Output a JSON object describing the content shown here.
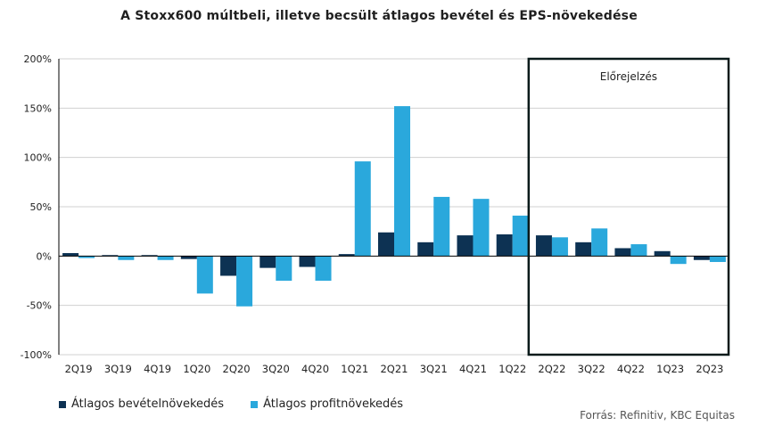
{
  "colors": {
    "revenue": "#0d3253",
    "profit": "#2aa8dc",
    "grid": "#d0d0d0",
    "axis": "#000000",
    "forecast_box": "#0a1a1a"
  },
  "chart_data": {
    "type": "bar",
    "title": "A Stoxx600  múltbeli,  illetve  becsült  átlagos bevétel  és  EPS-növekedése",
    "categories": [
      "2Q19",
      "3Q19",
      "4Q19",
      "1Q20",
      "2Q20",
      "3Q20",
      "4Q20",
      "1Q21",
      "2Q21",
      "3Q21",
      "4Q21",
      "1Q22",
      "2Q22",
      "3Q22",
      "4Q22",
      "1Q23",
      "2Q23"
    ],
    "series": [
      {
        "name": "Átlagos bevételnövekedés",
        "values": [
          3,
          1,
          1,
          -3,
          -20,
          -12,
          -11,
          2,
          24,
          14,
          21,
          22,
          21,
          14,
          8,
          5,
          -4
        ]
      },
      {
        "name": "Átlagos profitnövekedés",
        "values": [
          -2,
          -4,
          -4,
          -38,
          -51,
          -25,
          -25,
          96,
          152,
          60,
          58,
          41,
          19,
          28,
          12,
          -8,
          -6
        ]
      }
    ],
    "ylim": [
      -100,
      200
    ],
    "yticks": [
      -100,
      -50,
      0,
      50,
      100,
      150,
      200
    ],
    "ytick_labels": [
      "-100%",
      "-50%",
      "0%",
      "50%",
      "100%",
      "150%",
      "200%"
    ],
    "grid": true,
    "legend_position": "bottom-left",
    "annotation": {
      "label": "Előrejelzés",
      "from_category": "2Q22",
      "to_category": "2Q23"
    },
    "source": "Forrás: Refinitiv, KBC Equitas"
  }
}
